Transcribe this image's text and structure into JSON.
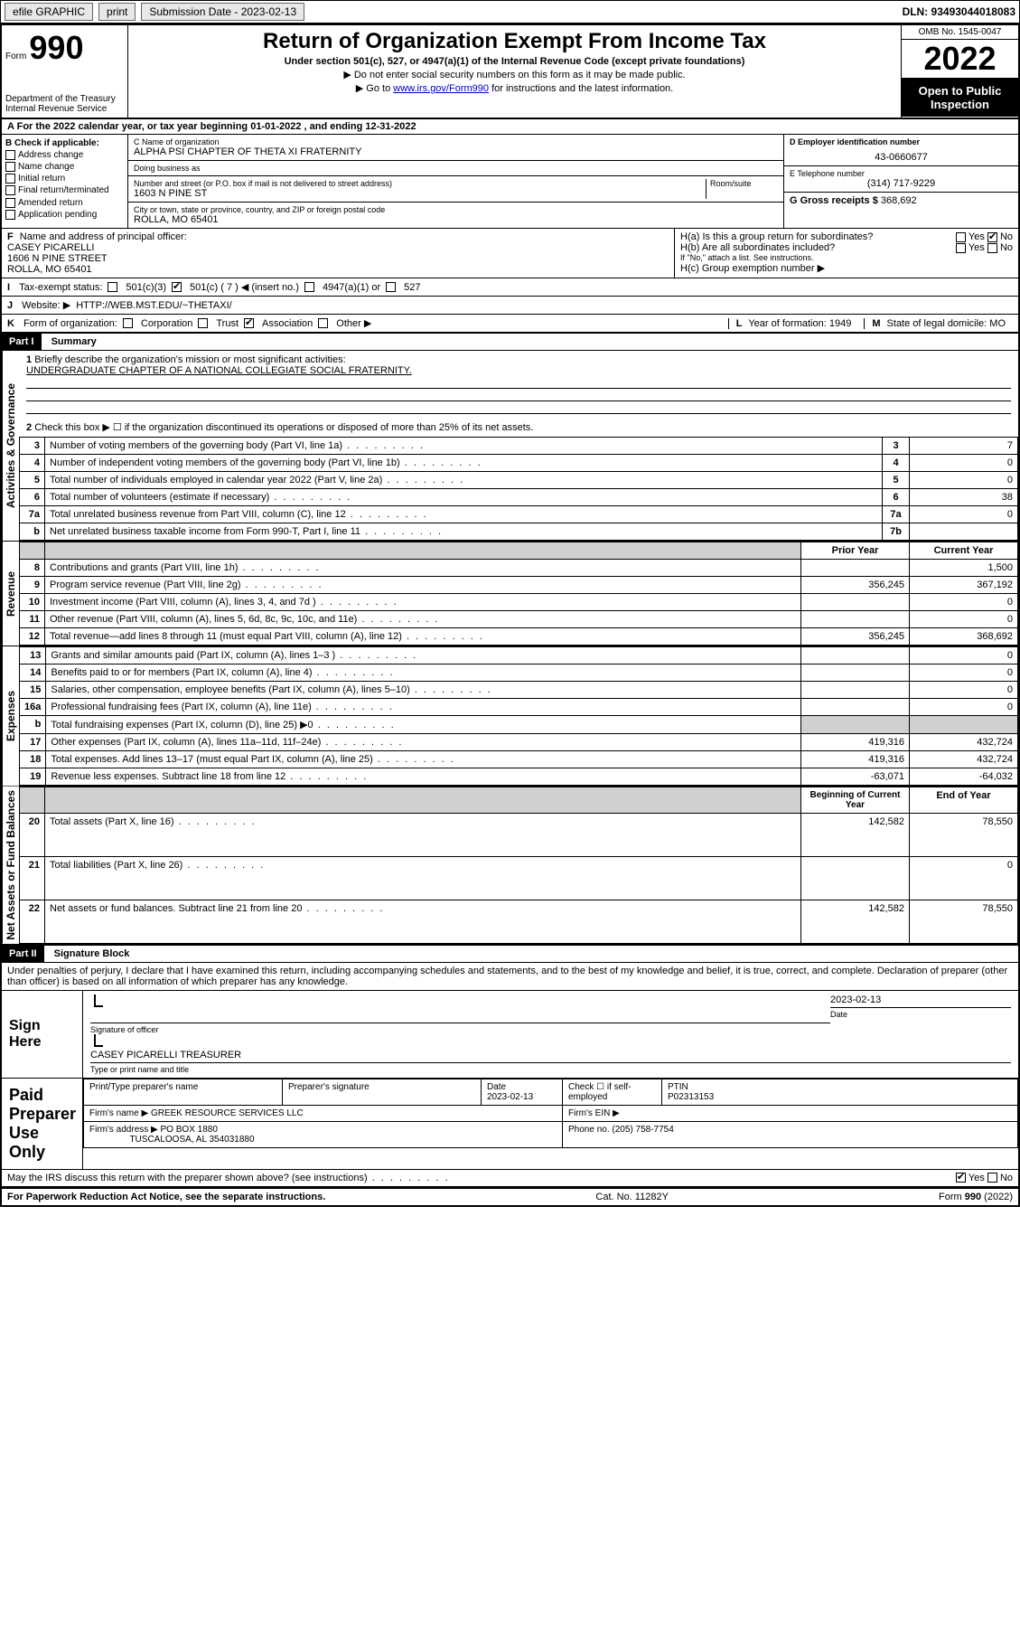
{
  "topbar": {
    "efile": "efile GRAPHIC",
    "print": "print",
    "subdate_label": "Submission Date - 2023-02-13",
    "dln": "DLN: 93493044018083"
  },
  "header": {
    "form_prefix": "Form",
    "form_number": "990",
    "dept": "Department of the Treasury\nInternal Revenue Service",
    "title": "Return of Organization Exempt From Income Tax",
    "subtitle": "Under section 501(c), 527, or 4947(a)(1) of the Internal Revenue Code (except private foundations)",
    "note1": "▶ Do not enter social security numbers on this form as it may be made public.",
    "note2_pre": "▶ Go to ",
    "note2_link": "www.irs.gov/Form990",
    "note2_post": " for instructions and the latest information.",
    "omb": "OMB No. 1545-0047",
    "year": "2022",
    "open": "Open to Public Inspection"
  },
  "section_a": "For the 2022 calendar year, or tax year beginning 01-01-2022   , and ending 12-31-2022",
  "col_b": {
    "header": "B Check if applicable:",
    "items": [
      "Address change",
      "Name change",
      "Initial return",
      "Final return/terminated",
      "Amended return",
      "Application pending"
    ]
  },
  "col_c": {
    "name_label": "C Name of organization",
    "name": "ALPHA PSI CHAPTER OF THETA XI FRATERNITY",
    "dba_label": "Doing business as",
    "dba": "",
    "street_label": "Number and street (or P.O. box if mail is not delivered to street address)",
    "room_label": "Room/suite",
    "street": "1603 N PINE ST",
    "city_label": "City or town, state or province, country, and ZIP or foreign postal code",
    "city": "ROLLA, MO  65401"
  },
  "col_d": {
    "ein_label": "D Employer identification number",
    "ein": "43-0660677",
    "phone_label": "E Telephone number",
    "phone": "(314) 717-9229",
    "gross_label": "G Gross receipts $",
    "gross": "368,692"
  },
  "line_f": {
    "label": "F",
    "text": "Name and address of principal officer:",
    "name": "CASEY PICARELLI",
    "addr1": "1606 N PINE STREET",
    "addr2": "ROLLA, MO  65401"
  },
  "line_h": {
    "ha": "H(a)  Is this a group return for subordinates?",
    "ha_yes": "Yes",
    "ha_no": "No",
    "hb": "H(b)  Are all subordinates included?",
    "hb_yes": "Yes",
    "hb_no": "No",
    "hb_note": "If \"No,\" attach a list. See instructions.",
    "hc": "H(c)  Group exemption number ▶"
  },
  "line_i": {
    "label": "I",
    "text": "Tax-exempt status:",
    "o1": "501(c)(3)",
    "o2": "501(c) ( 7 ) ◀ (insert no.)",
    "o3": "4947(a)(1) or",
    "o4": "527"
  },
  "line_j": {
    "label": "J",
    "text": "Website: ▶",
    "url": "HTTP://WEB.MST.EDU/~THETAXI/"
  },
  "line_k": {
    "label": "K",
    "text": "Form of organization:",
    "o1": "Corporation",
    "o2": "Trust",
    "o3": "Association",
    "o4": "Other ▶"
  },
  "line_l": {
    "label": "L",
    "text": "Year of formation: 1949"
  },
  "line_m": {
    "label": "M",
    "text": "State of legal domicile: MO"
  },
  "part1": {
    "label": "Part I",
    "title": "Summary",
    "mission_label": "Briefly describe the organization's mission or most significant activities:",
    "mission": "UNDERGRADUATE CHAPTER OF A NATIONAL COLLEGIATE SOCIAL FRATERNITY.",
    "line2": "Check this box ▶ ☐ if the organization discontinued its operations or disposed of more than 25% of its net assets.",
    "rows_gov": [
      {
        "n": "3",
        "d": "Number of voting members of the governing body (Part VI, line 1a)",
        "box": "3",
        "v": "7"
      },
      {
        "n": "4",
        "d": "Number of independent voting members of the governing body (Part VI, line 1b)",
        "box": "4",
        "v": "0"
      },
      {
        "n": "5",
        "d": "Total number of individuals employed in calendar year 2022 (Part V, line 2a)",
        "box": "5",
        "v": "0"
      },
      {
        "n": "6",
        "d": "Total number of volunteers (estimate if necessary)",
        "box": "6",
        "v": "38"
      },
      {
        "n": "7a",
        "d": "Total unrelated business revenue from Part VIII, column (C), line 12",
        "box": "7a",
        "v": "0"
      },
      {
        "n": "b",
        "d": "Net unrelated business taxable income from Form 990-T, Part I, line 11",
        "box": "7b",
        "v": ""
      }
    ],
    "col_hdr_prior": "Prior Year",
    "col_hdr_current": "Current Year",
    "rows_rev": [
      {
        "n": "8",
        "d": "Contributions and grants (Part VIII, line 1h)",
        "p": "",
        "c": "1,500"
      },
      {
        "n": "9",
        "d": "Program service revenue (Part VIII, line 2g)",
        "p": "356,245",
        "c": "367,192"
      },
      {
        "n": "10",
        "d": "Investment income (Part VIII, column (A), lines 3, 4, and 7d )",
        "p": "",
        "c": "0"
      },
      {
        "n": "11",
        "d": "Other revenue (Part VIII, column (A), lines 5, 6d, 8c, 9c, 10c, and 11e)",
        "p": "",
        "c": "0"
      },
      {
        "n": "12",
        "d": "Total revenue—add lines 8 through 11 (must equal Part VIII, column (A), line 12)",
        "p": "356,245",
        "c": "368,692"
      }
    ],
    "rows_exp": [
      {
        "n": "13",
        "d": "Grants and similar amounts paid (Part IX, column (A), lines 1–3 )",
        "p": "",
        "c": "0"
      },
      {
        "n": "14",
        "d": "Benefits paid to or for members (Part IX, column (A), line 4)",
        "p": "",
        "c": "0"
      },
      {
        "n": "15",
        "d": "Salaries, other compensation, employee benefits (Part IX, column (A), lines 5–10)",
        "p": "",
        "c": "0"
      },
      {
        "n": "16a",
        "d": "Professional fundraising fees (Part IX, column (A), line 11e)",
        "p": "",
        "c": "0"
      },
      {
        "n": "b",
        "d": "Total fundraising expenses (Part IX, column (D), line 25) ▶0",
        "p": "shade",
        "c": "shade"
      },
      {
        "n": "17",
        "d": "Other expenses (Part IX, column (A), lines 11a–11d, 11f–24e)",
        "p": "419,316",
        "c": "432,724"
      },
      {
        "n": "18",
        "d": "Total expenses. Add lines 13–17 (must equal Part IX, column (A), line 25)",
        "p": "419,316",
        "c": "432,724"
      },
      {
        "n": "19",
        "d": "Revenue less expenses. Subtract line 18 from line 12",
        "p": "-63,071",
        "c": "-64,032"
      }
    ],
    "col_hdr_begin": "Beginning of Current Year",
    "col_hdr_end": "End of Year",
    "rows_net": [
      {
        "n": "20",
        "d": "Total assets (Part X, line 16)",
        "p": "142,582",
        "c": "78,550"
      },
      {
        "n": "21",
        "d": "Total liabilities (Part X, line 26)",
        "p": "",
        "c": "0"
      },
      {
        "n": "22",
        "d": "Net assets or fund balances. Subtract line 21 from line 20",
        "p": "142,582",
        "c": "78,550"
      }
    ],
    "side_gov": "Activities & Governance",
    "side_rev": "Revenue",
    "side_exp": "Expenses",
    "side_net": "Net Assets or Fund Balances"
  },
  "part2": {
    "label": "Part II",
    "title": "Signature Block",
    "decl": "Under penalties of perjury, I declare that I have examined this return, including accompanying schedules and statements, and to the best of my knowledge and belief, it is true, correct, and complete. Declaration of preparer (other than officer) is based on all information of which preparer has any knowledge.",
    "sign_here": "Sign Here",
    "sig_officer": "Signature of officer",
    "sig_date": "2023-02-13",
    "date_label": "Date",
    "officer_name": "CASEY PICARELLI TREASURER",
    "officer_label": "Type or print name and title",
    "paid": "Paid Preparer Use Only",
    "prep_name_label": "Print/Type preparer's name",
    "prep_sig_label": "Preparer's signature",
    "prep_date_label": "Date",
    "prep_date": "2023-02-13",
    "prep_check": "Check ☐ if self-employed",
    "ptin_label": "PTIN",
    "ptin": "P02313153",
    "firm_name_label": "Firm's name    ▶",
    "firm_name": "GREEK RESOURCE SERVICES LLC",
    "firm_ein_label": "Firm's EIN ▶",
    "firm_addr_label": "Firm's address ▶",
    "firm_addr": "PO BOX 1880",
    "firm_city": "TUSCALOOSA, AL  354031880",
    "firm_phone_label": "Phone no.",
    "firm_phone": "(205) 758-7754",
    "may_irs": "May the IRS discuss this return with the preparer shown above? (see instructions)",
    "may_yes": "Yes",
    "may_no": "No"
  },
  "footer": {
    "left": "For Paperwork Reduction Act Notice, see the separate instructions.",
    "mid": "Cat. No. 11282Y",
    "right": "Form 990 (2022)"
  },
  "colors": {
    "link": "#0000cc",
    "shade": "#d0d0d0",
    "black": "#000000",
    "btn": "#e8e8e8"
  }
}
